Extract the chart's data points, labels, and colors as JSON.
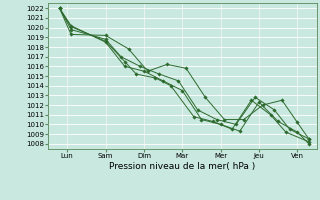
{
  "background_color": "#c8e8e0",
  "grid_color": "#aed8d0",
  "line_color": "#2d6a2d",
  "xlabel": "Pression niveau de la mer( hPa )",
  "ylim": [
    1007.5,
    1022.5
  ],
  "yticks": [
    1008,
    1009,
    1010,
    1011,
    1012,
    1013,
    1014,
    1015,
    1016,
    1017,
    1018,
    1019,
    1020,
    1021,
    1022
  ],
  "xtick_labels": [
    "Lun",
    "Sam",
    "Dim",
    "Mar",
    "Mer",
    "Jeu",
    "Ven"
  ],
  "xtick_positions": [
    0.5,
    1.5,
    2.5,
    3.5,
    4.5,
    5.5,
    6.5
  ],
  "xlim": [
    0,
    7
  ],
  "series_x": [
    [
      0.3,
      0.6,
      1.5,
      2.0,
      2.5,
      3.0,
      3.5,
      4.0,
      4.5,
      5.0,
      5.5,
      6.0,
      6.5,
      6.8
    ],
    [
      0.3,
      0.6,
      1.5,
      2.0,
      2.3,
      2.8,
      3.2,
      3.8,
      4.3,
      4.8,
      5.3,
      5.8,
      6.2,
      6.8
    ],
    [
      0.3,
      0.6,
      1.5,
      1.9,
      2.4,
      2.9,
      3.4,
      3.9,
      4.4,
      4.9,
      5.4,
      5.9,
      6.3,
      6.8
    ],
    [
      0.3,
      0.6,
      1.5,
      2.1,
      2.6,
      3.1,
      3.6,
      4.1,
      4.6,
      5.1,
      5.6,
      6.1,
      6.5,
      6.8
    ]
  ],
  "series_y": [
    [
      1022,
      1020.2,
      1018.5,
      1016.0,
      1015.5,
      1014.5,
      1013.5,
      1010.5,
      1010.0,
      1009.3,
      1012.3,
      1010.3,
      1009.2,
      1008.0
    ],
    [
      1022,
      1020.1,
      1018.6,
      1016.5,
      1015.2,
      1014.8,
      1014.0,
      1010.8,
      1010.3,
      1009.5,
      1012.5,
      1011.0,
      1009.2,
      1008.2
    ],
    [
      1022,
      1019.8,
      1018.8,
      1017.0,
      1016.0,
      1015.2,
      1014.5,
      1011.5,
      1010.5,
      1010.0,
      1012.8,
      1011.5,
      1009.5,
      1008.5
    ],
    [
      1022,
      1019.3,
      1019.2,
      1017.8,
      1015.5,
      1016.2,
      1015.8,
      1012.8,
      1010.5,
      1010.5,
      1012.0,
      1012.5,
      1010.2,
      1008.5
    ]
  ],
  "marker": "D",
  "markersize": 1.8,
  "linewidth": 0.7,
  "tick_fontsize": 5.0,
  "xlabel_fontsize": 6.5
}
